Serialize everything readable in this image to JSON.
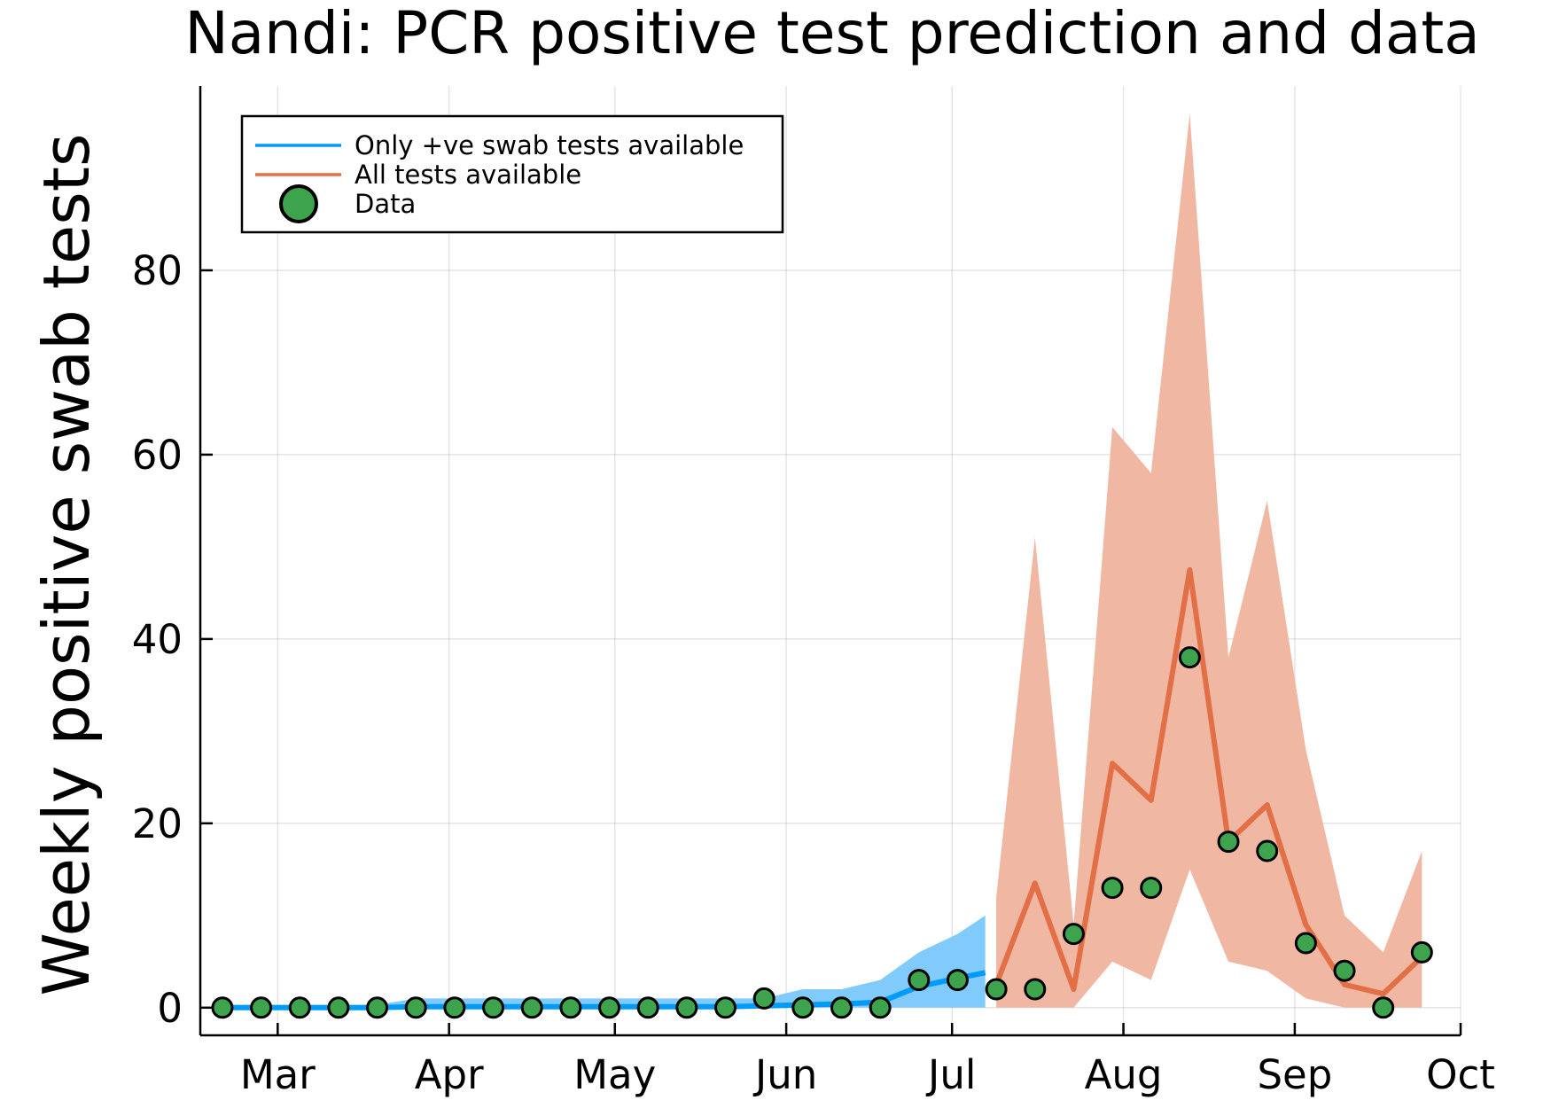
{
  "chart_data": {
    "type": "line",
    "title": "Nandi: PCR positive test prediction and data",
    "xlabel": "",
    "ylabel": "Weekly positive swab tests",
    "x_ticks": [
      "Mar",
      "Apr",
      "May",
      "Jun",
      "Jul",
      "Aug",
      "Sep",
      "Oct"
    ],
    "y_ticks": [
      "0",
      "20",
      "40",
      "60",
      "80"
    ],
    "xlim": [
      "2020-02-16",
      "2020-10-01"
    ],
    "ylim": [
      -3,
      100
    ],
    "grid": true,
    "legend_position": "top-left",
    "colors": {
      "blue": "#009af9",
      "blue_band": "#80cbfc",
      "orange": "#e26f46",
      "orange_band": "#f0b7a2",
      "green": "#3da44d"
    },
    "series": [
      {
        "name": "Only +ve swab tests available",
        "kind": "line_with_band",
        "x": [
          "2020-02-20",
          "2020-02-27",
          "2020-03-05",
          "2020-03-12",
          "2020-03-19",
          "2020-03-26",
          "2020-04-02",
          "2020-04-09",
          "2020-04-16",
          "2020-04-23",
          "2020-04-30",
          "2020-05-07",
          "2020-05-14",
          "2020-05-21",
          "2020-05-28",
          "2020-06-04",
          "2020-06-11",
          "2020-06-18",
          "2020-06-25",
          "2020-07-02",
          "2020-07-07"
        ],
        "y": [
          0,
          0,
          0,
          0,
          0,
          0.1,
          0.1,
          0.1,
          0.1,
          0.1,
          0.1,
          0.1,
          0.1,
          0.1,
          0.2,
          0.3,
          0.4,
          0.6,
          2.3,
          3.2,
          3.8
        ],
        "lower": [
          0,
          0,
          0,
          0,
          0,
          0,
          0,
          0,
          0,
          0,
          0,
          0,
          0,
          0,
          0,
          0,
          0,
          0,
          0,
          0,
          0
        ],
        "upper": [
          0.3,
          0.3,
          0.3,
          0.3,
          0.3,
          1,
          1,
          1,
          1,
          1,
          1,
          1,
          1,
          1,
          1,
          2,
          2,
          3,
          6,
          8,
          10
        ]
      },
      {
        "name": "All tests available",
        "kind": "line_with_band",
        "x": [
          "2020-07-09",
          "2020-07-16",
          "2020-07-23",
          "2020-07-30",
          "2020-08-06",
          "2020-08-13",
          "2020-08-20",
          "2020-08-27",
          "2020-09-03",
          "2020-09-10",
          "2020-09-17",
          "2020-09-24"
        ],
        "y": [
          2.5,
          13.5,
          2,
          26.5,
          22.5,
          47.5,
          18,
          22,
          9,
          2.5,
          1.5,
          5.5
        ],
        "lower": [
          0,
          0,
          0,
          5,
          3,
          15,
          5,
          4,
          1,
          0,
          0,
          0
        ],
        "upper": [
          12,
          51,
          9,
          63,
          58,
          97,
          38,
          55,
          28,
          10,
          6,
          17
        ]
      },
      {
        "name": "Data",
        "kind": "scatter",
        "x": [
          "2020-02-20",
          "2020-02-27",
          "2020-03-05",
          "2020-03-12",
          "2020-03-19",
          "2020-03-26",
          "2020-04-02",
          "2020-04-09",
          "2020-04-16",
          "2020-04-23",
          "2020-04-30",
          "2020-05-07",
          "2020-05-14",
          "2020-05-21",
          "2020-05-28",
          "2020-06-04",
          "2020-06-11",
          "2020-06-18",
          "2020-06-25",
          "2020-07-02",
          "2020-07-09",
          "2020-07-16",
          "2020-07-23",
          "2020-07-30",
          "2020-08-06",
          "2020-08-13",
          "2020-08-20",
          "2020-08-27",
          "2020-09-03",
          "2020-09-10",
          "2020-09-17",
          "2020-09-24"
        ],
        "y": [
          0,
          0,
          0,
          0,
          0,
          0,
          0,
          0,
          0,
          0,
          0,
          0,
          0,
          0,
          1,
          0,
          0,
          0,
          3,
          3,
          2,
          2,
          8,
          13,
          13,
          38,
          18,
          17,
          7,
          4,
          0,
          6
        ]
      }
    ]
  }
}
